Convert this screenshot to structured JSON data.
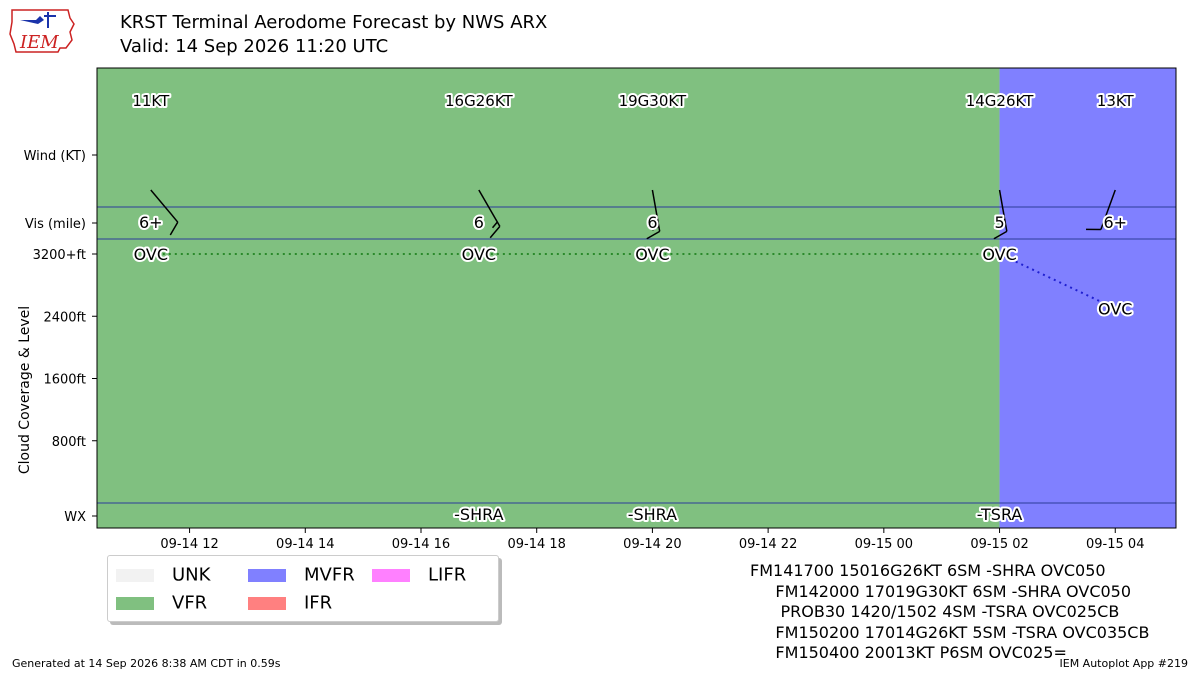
{
  "header": {
    "title": "KRST Terminal Aerodome Forecast by NWS ARX",
    "valid": "Valid: 14 Sep 2026 11:20 UTC",
    "logo_text": "IEM"
  },
  "footer": {
    "generated": "Generated at 14 Sep 2026 8:38 AM CDT in 0.59s",
    "app": "IEM Autoplot App #219"
  },
  "taf_text": [
    "FM141700 15016G26KT 6SM -SHRA OVC050",
    "     FM142000 17019G30KT 6SM -SHRA OVC050",
    "      PROB30 1420/1502 4SM -TSRA OVC025CB",
    "     FM150200 17014G26KT 5SM -TSRA OVC035CB",
    "     FM150400 20013KT P6SM OVC025="
  ],
  "legend": [
    {
      "label": "UNK",
      "color": "#f2f2f2"
    },
    {
      "label": "VFR",
      "color": "#80c080"
    },
    {
      "label": "MVFR",
      "color": "#8080ff"
    },
    {
      "label": "IFR",
      "color": "#ff8080"
    },
    {
      "label": "LIFR",
      "color": "#ff80ff"
    }
  ],
  "chart_data": {
    "type": "timeline",
    "ylabel": "Cloud Coverage & Level",
    "row_labels": {
      "wind": "Wind (KT)",
      "vis": "Vis (mile)",
      "wx": "WX"
    },
    "x_ticks": [
      "09-14 12",
      "09-14 14",
      "09-14 16",
      "09-14 18",
      "09-14 20",
      "09-14 22",
      "09-15 00",
      "09-15 02",
      "09-15 04"
    ],
    "x_tick_hours": [
      12,
      14,
      16,
      18,
      20,
      22,
      24,
      26,
      28
    ],
    "xlim_hours": [
      10.4,
      29.05
    ],
    "y_ticks": [
      {
        "value": 800,
        "label": "800ft"
      },
      {
        "value": 1600,
        "label": "1600ft"
      },
      {
        "value": 2400,
        "label": "2400ft"
      },
      {
        "value": 3200,
        "label": "3200+ft"
      }
    ],
    "category_spans": [
      {
        "start_hour": 10.4,
        "end_hour": 26.0,
        "category": "VFR",
        "color": "#80c080"
      },
      {
        "start_hour": 26.0,
        "end_hour": 29.05,
        "category": "MVFR",
        "color": "#8080ff"
      }
    ],
    "forecasts": [
      {
        "hour": 11.33,
        "wind_text": "11KT",
        "wind_dir": 140,
        "wind_speed": 11,
        "vis": "6+",
        "cloud": "OVC",
        "cloud_ft": 3200,
        "wx": ""
      },
      {
        "hour": 17.0,
        "wind_text": "16G26KT",
        "wind_dir": 150,
        "wind_speed": 16,
        "vis": "6",
        "cloud": "OVC",
        "cloud_ft": 3200,
        "wx": "-SHRA"
      },
      {
        "hour": 20.0,
        "wind_text": "19G30KT",
        "wind_dir": 170,
        "wind_speed": 19,
        "vis": "6",
        "cloud": "OVC",
        "cloud_ft": 3200,
        "wx": "-SHRA"
      },
      {
        "hour": 26.0,
        "wind_text": "14G26KT",
        "wind_dir": 170,
        "wind_speed": 14,
        "vis": "5",
        "cloud": "OVC",
        "cloud_ft": 3200,
        "wx": "-TSRA"
      },
      {
        "hour": 28.0,
        "wind_text": "13KT",
        "wind_dir": 200,
        "wind_speed": 13,
        "vis": "6+",
        "cloud": "OVC",
        "cloud_ft": 2500,
        "wx": ""
      }
    ],
    "ceiling_line_color": "#2b8a2b",
    "ceiling_line_color_mvfr": "#1f1fd0"
  }
}
